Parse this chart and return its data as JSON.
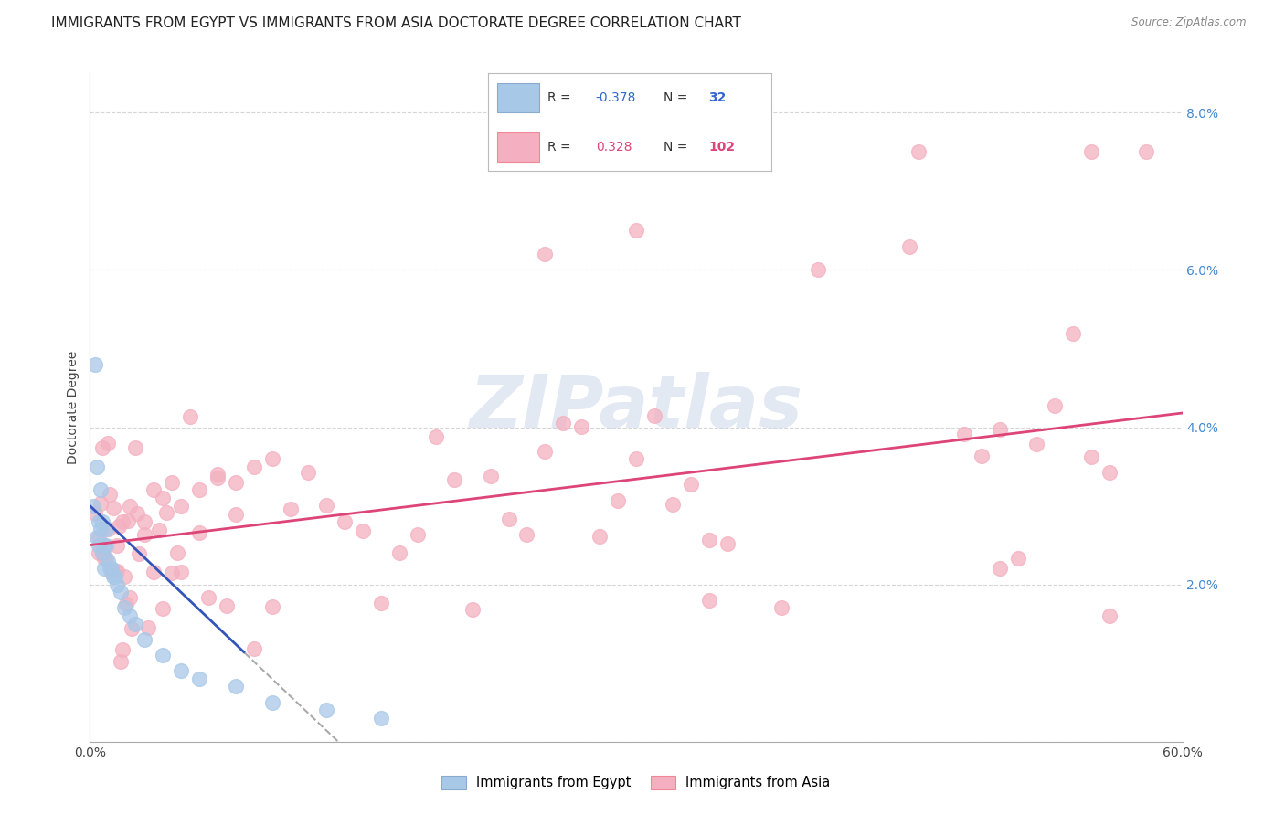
{
  "title": "IMMIGRANTS FROM EGYPT VS IMMIGRANTS FROM ASIA DOCTORATE DEGREE CORRELATION CHART",
  "source": "Source: ZipAtlas.com",
  "ylabel": "Doctorate Degree",
  "xlim": [
    0.0,
    0.6
  ],
  "ylim": [
    0.0,
    0.085
  ],
  "egypt_color": "#a8c8e8",
  "asia_color": "#f4b0c0",
  "egypt_R": -0.378,
  "egypt_N": 32,
  "asia_R": 0.328,
  "asia_N": 102,
  "egypt_line_color": "#3355bb",
  "asia_line_color": "#dd4477",
  "background_color": "#ffffff",
  "grid_color": "#bbbbbb",
  "title_fontsize": 11,
  "axis_label_fontsize": 10,
  "tick_fontsize": 10,
  "watermark_color": "#ccd8ea",
  "watermark_alpha": 0.55,
  "right_tick_color": "#4488cc"
}
